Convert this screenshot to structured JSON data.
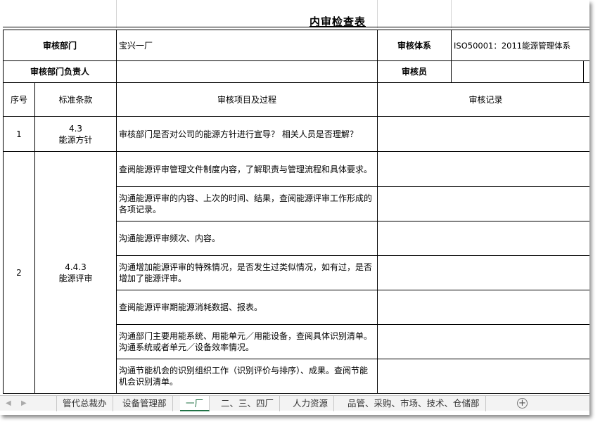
{
  "title": "内审检查表",
  "info": {
    "dept_label": "审核部门",
    "dept_value": "宝兴一厂",
    "system_label": "审核体系",
    "system_value": "ISO50001：2011能源管理体系",
    "manager_label": "审核部门负责人",
    "manager_value": "",
    "auditor_label": "审核员",
    "auditor_value": ""
  },
  "headers": {
    "no": "序号",
    "clause": "标准条款",
    "item": "审核项目及过程",
    "record": "审核记录"
  },
  "rows": [
    {
      "no": "1",
      "clause_code": "4.3",
      "clause_name": "能源方针",
      "items": [
        "审核部门是否对公司的能源方针进行宣导？ 相关人员是否理解？"
      ]
    },
    {
      "no": "2",
      "clause_code": "4.4.3",
      "clause_name": "能源评审",
      "items": [
        "查阅能源评审管理文件制度内容，了解职责与管理流程和具体要求。",
        "沟通能源评审的内容、上次的时间、结果，查阅能源评审工作形成的各项记录。",
        "沟通能源评审频次、内容。",
        "沟通增加能源评审的特殊情况，是否发生过类似情况，如有过，是否增加了能源评审。",
        "查阅能源评审期能源消耗数据、报表。",
        "沟通部门主要用能系统、用能单元／用能设备，查阅具体识别清单。沟通系统或者单元／设备效率情况。",
        "沟通节能机会的识别组织工作（识别评价与排序）、成果。查阅节能机会识别清单。"
      ]
    }
  ],
  "sheet_tabs": [
    "管代总裁办",
    "设备管理部",
    "一厂",
    "二、三、四厂",
    "人力资源",
    "品管、采购、市场、技术、仓储部"
  ],
  "active_tab": "一厂",
  "accent_color": "#217346"
}
